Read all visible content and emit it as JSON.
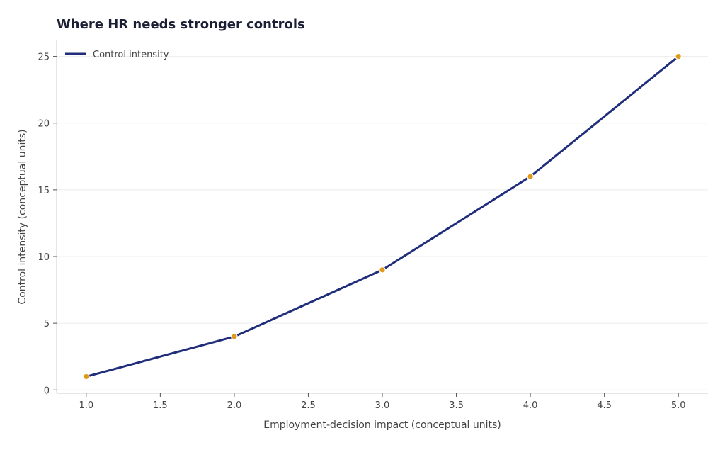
{
  "chart_data": {
    "type": "line",
    "title": "Where HR needs stronger controls",
    "xlabel": "Employment-decision impact (conceptual units)",
    "ylabel": "Control intensity (conceptual units)",
    "xlim": [
      0.8,
      5.2
    ],
    "ylim": [
      -0.25,
      26.2
    ],
    "x_ticks": [
      1.0,
      1.5,
      2.0,
      2.5,
      3.0,
      3.5,
      4.0,
      4.5,
      5.0
    ],
    "x_tick_labels": [
      "1.0",
      "1.5",
      "2.0",
      "2.5",
      "3.0",
      "3.5",
      "4.0",
      "4.5",
      "5.0"
    ],
    "y_ticks": [
      0,
      5,
      10,
      15,
      20,
      25
    ],
    "y_tick_labels": [
      "0",
      "5",
      "10",
      "15",
      "20",
      "25"
    ],
    "grid": "horizontal",
    "legend_position": "top-left",
    "series": [
      {
        "name": "Control intensity",
        "x": [
          1.0,
          2.0,
          3.0,
          4.0,
          5.0
        ],
        "values": [
          1,
          4,
          9,
          16,
          25
        ],
        "line_color": "#1f2d7a",
        "marker_color": "#e09a1a"
      }
    ]
  }
}
